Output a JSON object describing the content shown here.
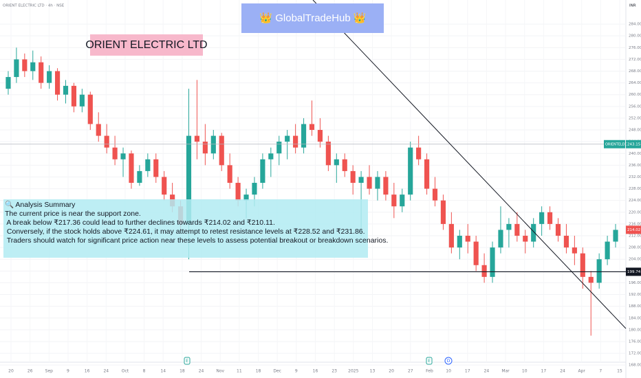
{
  "header": {
    "symbol_line": "ORIENT ELECTRIC LTD · 4h · NSE",
    "currency": "INR"
  },
  "banner": "👑 GlobalTradeHub 👑",
  "chart_data": {
    "type": "candlestick",
    "title": "ORIENT ELECTRIC LTD",
    "up_color": "#26a69a",
    "down_color": "#ef5350",
    "ylim": [
      163.6,
      292.2
    ],
    "yticks": [
      {
        "value": 168,
        "label": "168.00"
      },
      {
        "value": 172,
        "label": "172.00"
      },
      {
        "value": 176,
        "label": "176.00"
      },
      {
        "value": 180,
        "label": "180.00"
      },
      {
        "value": 184,
        "label": "184.00"
      },
      {
        "value": 188,
        "label": "188.00"
      },
      {
        "value": 192,
        "label": "192.00"
      },
      {
        "value": 196,
        "label": "196.00"
      },
      {
        "value": 200,
        "label": "200.00"
      },
      {
        "value": 204,
        "label": "204.00"
      },
      {
        "value": 208,
        "label": "208.00"
      },
      {
        "value": 212,
        "label": "212.00"
      },
      {
        "value": 216,
        "label": "216.00"
      },
      {
        "value": 220,
        "label": "220.00"
      },
      {
        "value": 224,
        "label": "224.00"
      },
      {
        "value": 228,
        "label": "228.00"
      },
      {
        "value": 232,
        "label": "232.00"
      },
      {
        "value": 236,
        "label": "236.00"
      },
      {
        "value": 240,
        "label": "240.00"
      },
      {
        "value": 244,
        "label": "244.00"
      },
      {
        "value": 248,
        "label": "248.00"
      },
      {
        "value": 252,
        "label": "252.00"
      },
      {
        "value": 256,
        "label": "256.00"
      },
      {
        "value": 260,
        "label": "260.00"
      },
      {
        "value": 264,
        "label": "264.00"
      },
      {
        "value": 268,
        "label": "268.00"
      },
      {
        "value": 272,
        "label": "272.00"
      },
      {
        "value": 276,
        "label": "276.00"
      },
      {
        "value": 280,
        "label": "280.00"
      },
      {
        "value": 284,
        "label": "284.00"
      }
    ],
    "x_labels": [
      "20",
      "26",
      "Sep",
      "9",
      "16",
      "24",
      "Oct",
      "8",
      "14",
      "18",
      "24",
      "Nov",
      "11",
      "18",
      "Dec",
      "9",
      "16",
      "23",
      "2025",
      "13",
      "20",
      "27",
      "Feb",
      "10",
      "17",
      "24",
      "Mar",
      "10",
      "17",
      "24",
      "Apr",
      "7",
      "15"
    ],
    "candles": [
      [
        262,
        268,
        260,
        266
      ],
      [
        266,
        276,
        264,
        272
      ],
      [
        272,
        274,
        266,
        268
      ],
      [
        268,
        275,
        265,
        271
      ],
      [
        271,
        273,
        262,
        264
      ],
      [
        264,
        270,
        262,
        268
      ],
      [
        268,
        269,
        258,
        260
      ],
      [
        260,
        265,
        257,
        263
      ],
      [
        263,
        264,
        254,
        256
      ],
      [
        256,
        262,
        254,
        260
      ],
      [
        260,
        261,
        248,
        250
      ],
      [
        250,
        254,
        244,
        246
      ],
      [
        246,
        250,
        240,
        242
      ],
      [
        242,
        246,
        236,
        238
      ],
      [
        238,
        242,
        232,
        240
      ],
      [
        240,
        241,
        228,
        230
      ],
      [
        230,
        236,
        229,
        234
      ],
      [
        234,
        240,
        232,
        238
      ],
      [
        238,
        240,
        230,
        232
      ],
      [
        232,
        234,
        224,
        226
      ],
      [
        226,
        230,
        220,
        222
      ],
      [
        222,
        224,
        214,
        216
      ],
      [
        216,
        262,
        204,
        246
      ],
      [
        246,
        265,
        238,
        244
      ],
      [
        244,
        250,
        236,
        240
      ],
      [
        240,
        248,
        238,
        246
      ],
      [
        246,
        247,
        234,
        236
      ],
      [
        236,
        240,
        228,
        230
      ],
      [
        230,
        232,
        222,
        224
      ],
      [
        224,
        228,
        218,
        226
      ],
      [
        226,
        232,
        222,
        230
      ],
      [
        230,
        240,
        228,
        238
      ],
      [
        238,
        242,
        232,
        240
      ],
      [
        240,
        246,
        236,
        244
      ],
      [
        244,
        248,
        238,
        246
      ],
      [
        246,
        250,
        240,
        242
      ],
      [
        242,
        252,
        240,
        250
      ],
      [
        250,
        258,
        246,
        248
      ],
      [
        248,
        252,
        242,
        244
      ],
      [
        244,
        246,
        234,
        236
      ],
      [
        236,
        240,
        230,
        238
      ],
      [
        238,
        240,
        232,
        234
      ],
      [
        234,
        236,
        226,
        230
      ],
      [
        230,
        234,
        212,
        232
      ],
      [
        232,
        236,
        226,
        228
      ],
      [
        228,
        234,
        224,
        232
      ],
      [
        232,
        234,
        224,
        226
      ],
      [
        226,
        230,
        218,
        222
      ],
      [
        222,
        228,
        220,
        226
      ],
      [
        226,
        244,
        224,
        242
      ],
      [
        242,
        246,
        236,
        238
      ],
      [
        238,
        240,
        226,
        228
      ],
      [
        228,
        232,
        222,
        224
      ],
      [
        224,
        226,
        214,
        216
      ],
      [
        216,
        220,
        206,
        208
      ],
      [
        208,
        214,
        204,
        212
      ],
      [
        212,
        216,
        206,
        210
      ],
      [
        210,
        212,
        200,
        202
      ],
      [
        202,
        206,
        196,
        198
      ],
      [
        198,
        210,
        196,
        208
      ],
      [
        208,
        222,
        206,
        214
      ],
      [
        214,
        218,
        208,
        216
      ],
      [
        216,
        220,
        210,
        212
      ],
      [
        212,
        214,
        206,
        210
      ],
      [
        210,
        218,
        208,
        216
      ],
      [
        216,
        222,
        212,
        220
      ],
      [
        220,
        222,
        214,
        216
      ],
      [
        216,
        218,
        210,
        212
      ],
      [
        212,
        216,
        206,
        208
      ],
      [
        208,
        212,
        202,
        206
      ],
      [
        206,
        208,
        194,
        198
      ],
      [
        198,
        200,
        178,
        196
      ],
      [
        196,
        206,
        194,
        204
      ],
      [
        204,
        212,
        202,
        210
      ],
      [
        210,
        216,
        208,
        214
      ]
    ],
    "price_labels": [
      {
        "name": "ORIENTELEC",
        "value": 243.15,
        "color": "#26a69a"
      },
      {
        "value": 199.74,
        "color": "#131722"
      },
      {
        "value": 214.02,
        "color": "#ef5350"
      }
    ],
    "events": [
      "E",
      "E",
      "D"
    ],
    "annotation": [
      "🔍 Analysis Summary",
      "The current price is near the support zone.",
      " A break below ₹217.36 could lead to further declines towards ₹214.02 and ₹210.11.",
      " Conversely, if the stock holds above ₹224.61, it may attempt to retest resistance levels at ₹228.52 and ₹231.86.",
      " Traders should watch for significant price action near these levels to assess potential breakout or breakdown scenarios."
    ]
  }
}
